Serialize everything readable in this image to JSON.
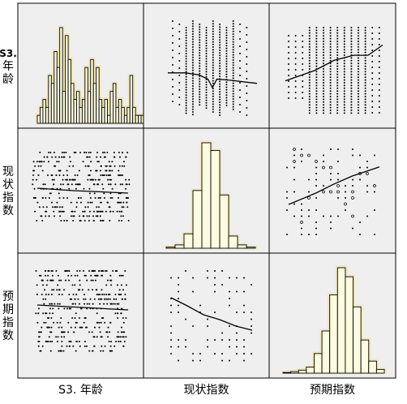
{
  "chart_data": {
    "type": "scatter-matrix",
    "variables": [
      "S3. 年龄",
      "现状指数",
      "预期指数"
    ],
    "colors": {
      "panel_bg": "#efefef",
      "bar_fill": "#fdfbe0",
      "bar_glow": "#f2e2a0",
      "ink": "#000000"
    },
    "histograms": {
      "age": [
        1,
        2,
        3,
        2,
        6,
        5,
        9,
        7,
        12,
        4,
        11,
        8,
        5,
        3,
        4,
        2,
        3,
        7,
        4,
        8,
        5,
        7,
        3,
        2,
        3,
        1,
        4,
        5,
        2,
        3,
        2,
        1,
        2,
        6,
        2,
        1,
        1,
        1,
        1
      ],
      "current_index": [
        1,
        3,
        13,
        52,
        95,
        88,
        48,
        11,
        3,
        1
      ],
      "expected_index": [
        0.5,
        1,
        2,
        4,
        13,
        28,
        52,
        70,
        64,
        44,
        22,
        8,
        2.5
      ]
    },
    "fit_lines": {
      "age_vs_current": [
        [
          0,
          0.66
        ],
        [
          0.2,
          0.66
        ],
        [
          0.35,
          0.68
        ],
        [
          0.45,
          0.72
        ],
        [
          0.5,
          0.8
        ],
        [
          0.55,
          0.72
        ],
        [
          0.7,
          0.73
        ],
        [
          1,
          0.76
        ]
      ],
      "age_vs_expected": [
        [
          0,
          0.35
        ],
        [
          0.2,
          0.45
        ],
        [
          0.4,
          0.56
        ],
        [
          0.6,
          0.62
        ],
        [
          0.8,
          0.7
        ],
        [
          1,
          0.75
        ]
      ],
      "current_vs_expected": [
        [
          0,
          0.72
        ],
        [
          0.3,
          0.6
        ],
        [
          0.5,
          0.48
        ],
        [
          0.7,
          0.42
        ],
        [
          0.85,
          0.42
        ],
        [
          1,
          0.3
        ]
      ],
      "current_vs_age": [
        [
          0,
          0.4
        ],
        [
          0.4,
          0.45
        ],
        [
          1,
          0.5
        ]
      ],
      "expected_vs_age": [
        [
          0,
          0.4
        ],
        [
          0.5,
          0.45
        ],
        [
          1,
          0.5
        ]
      ],
      "expected_vs_current": [
        [
          0,
          0.6
        ],
        [
          0.3,
          0.5
        ],
        [
          0.5,
          0.42
        ],
        [
          0.7,
          0.35
        ],
        [
          1,
          0.27
        ]
      ]
    }
  }
}
